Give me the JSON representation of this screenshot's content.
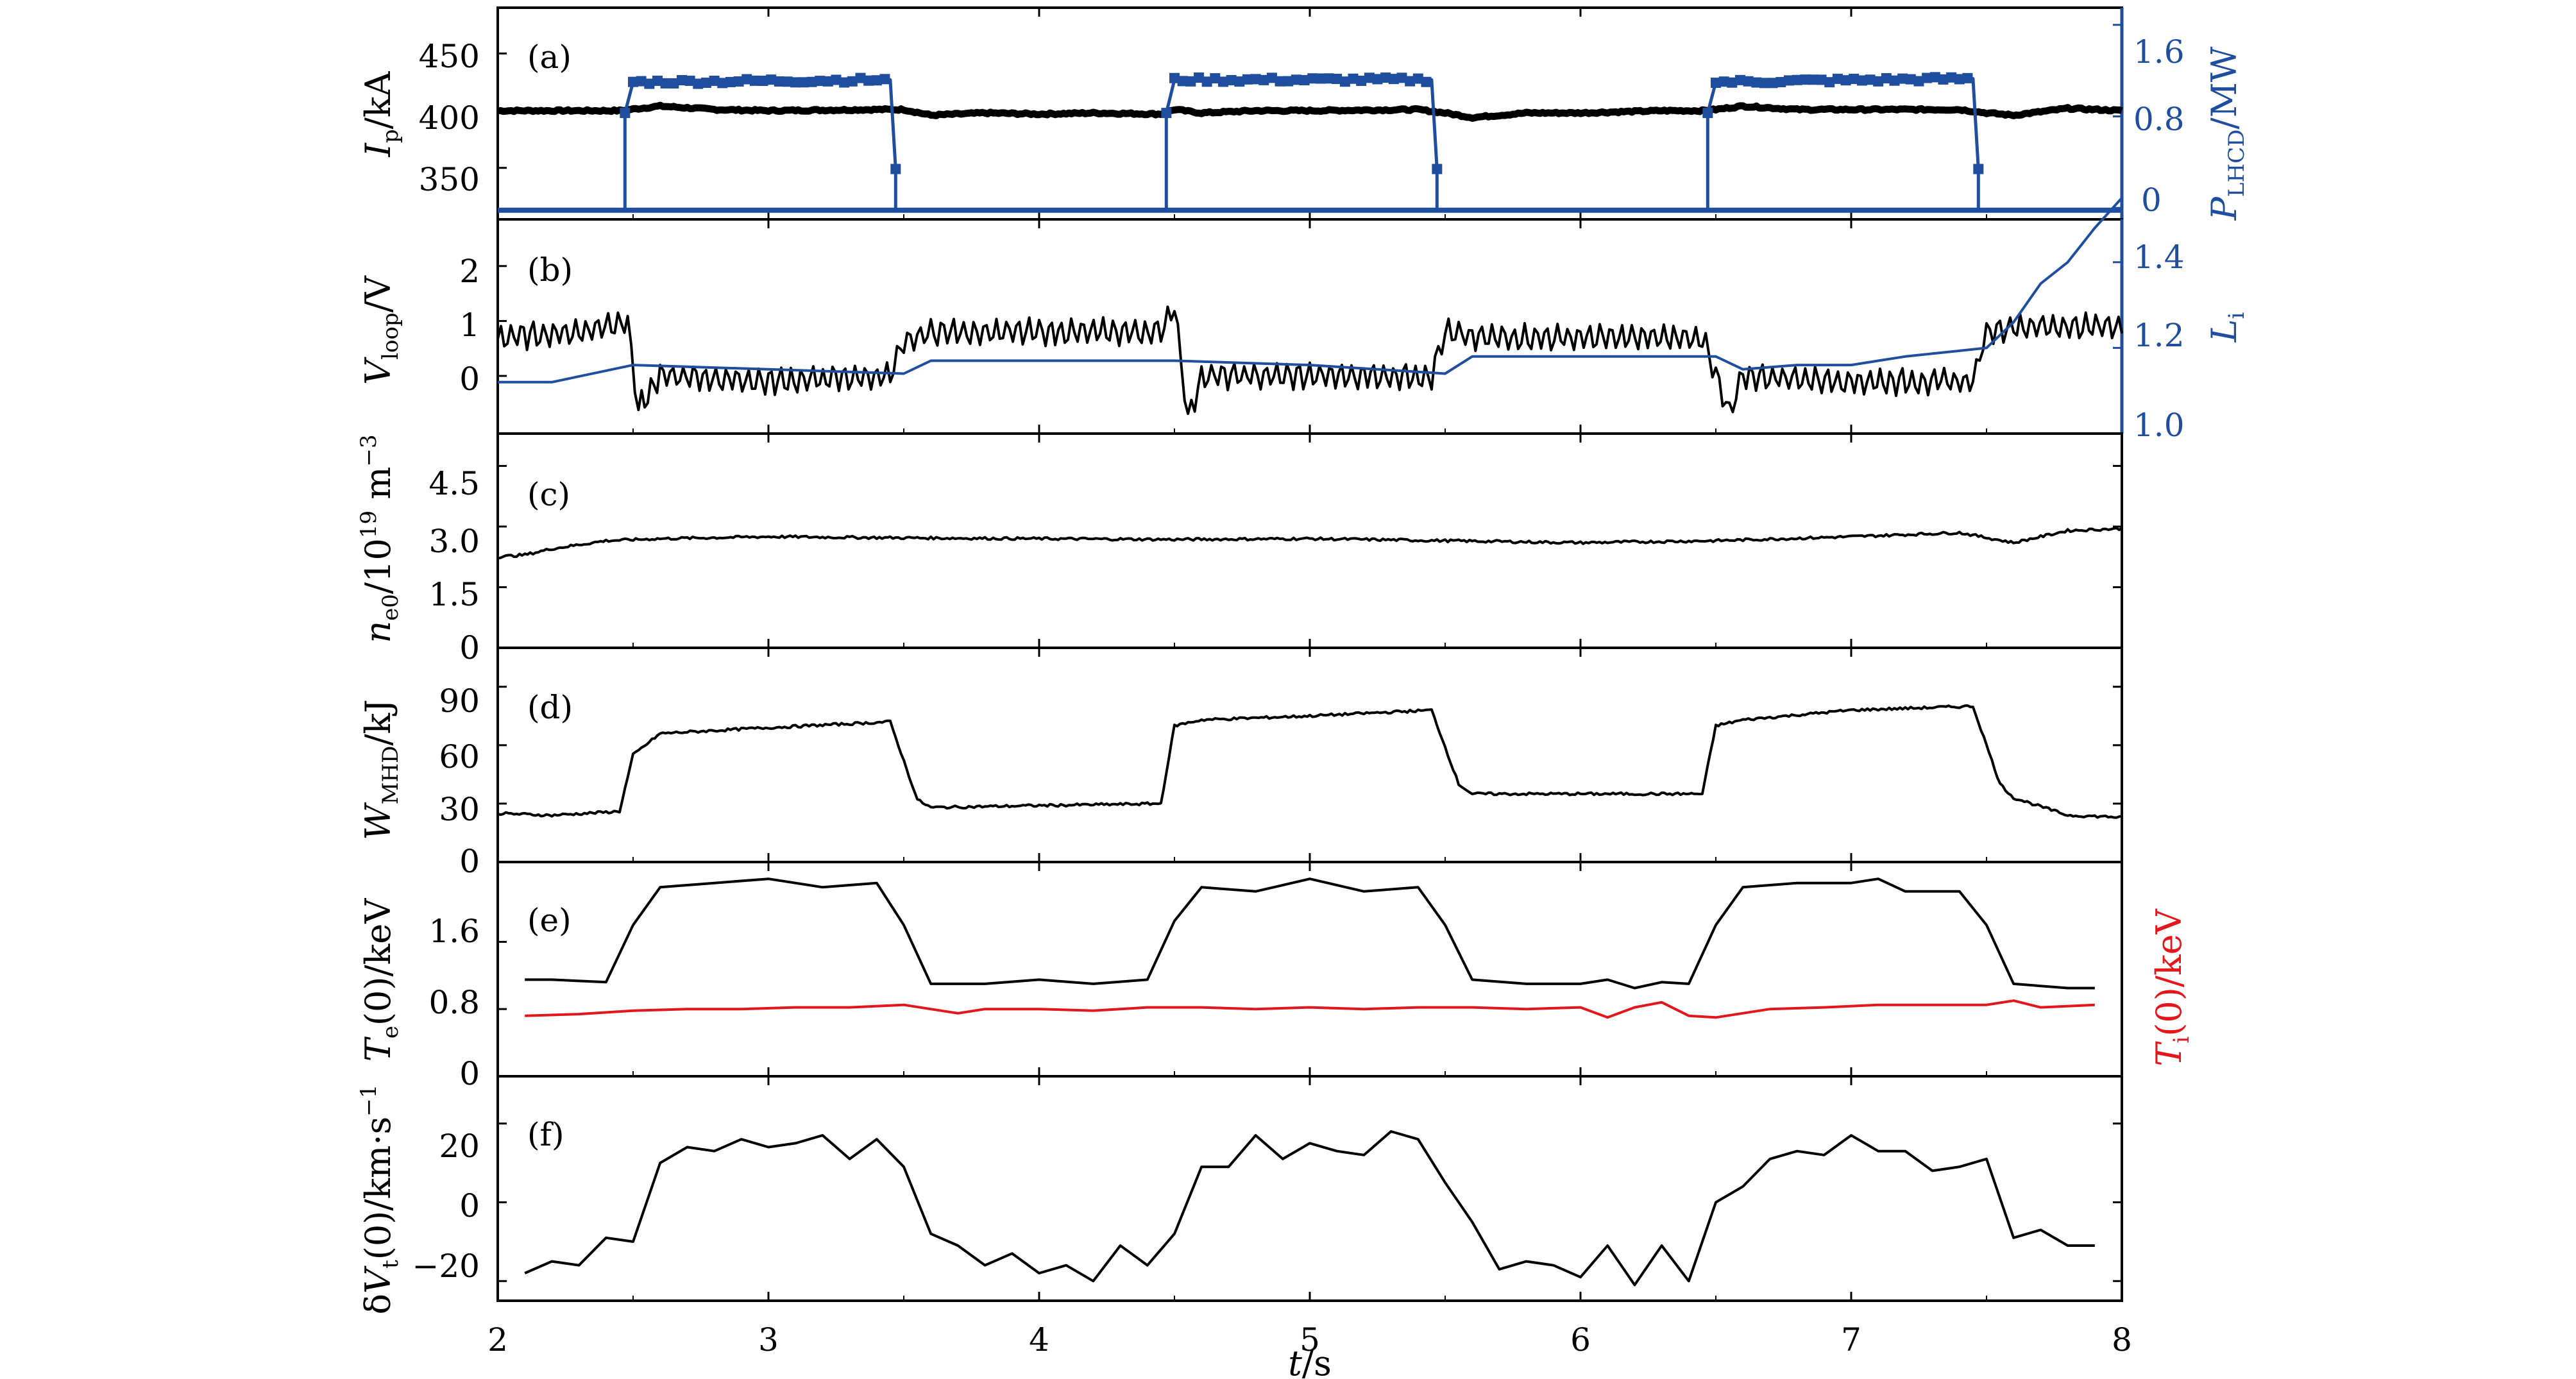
{
  "chart_data": {
    "type": "line",
    "x_axis": {
      "label": "t/s",
      "range": [
        2,
        8
      ],
      "ticks": [
        "2",
        "3",
        "4",
        "5",
        "6",
        "7",
        "8"
      ]
    },
    "colors": {
      "black": "#000000",
      "blue": "#1f4e9f",
      "red": "#e3171b"
    },
    "panels": [
      {
        "tag": "(a)",
        "left_axis": {
          "label": "I_p/kA",
          "range": [
            305,
            490
          ],
          "ticks": [
            "350",
            "400",
            "450"
          ],
          "tick_values": [
            350,
            400,
            450
          ]
        },
        "right_axis": {
          "label": "P_LHCD/MW",
          "range": [
            -0.1,
            1.75
          ],
          "ticks": [
            "0",
            "0.8",
            "1.6"
          ],
          "tick_values": [
            0,
            0.8,
            1.6
          ]
        },
        "series": [
          {
            "axis": "left",
            "color": "black",
            "style": "thick",
            "x": [
              2.0,
              2.3,
              2.45,
              2.6,
              2.8,
              3.0,
              3.4,
              3.5,
              3.6,
              3.8,
              4.0,
              4.2,
              4.45,
              4.5,
              4.6,
              4.8,
              5.0,
              5.4,
              5.5,
              5.6,
              5.8,
              6.0,
              6.3,
              6.45,
              6.5,
              6.6,
              6.8,
              7.0,
              7.4,
              7.5,
              7.6,
              7.8,
              8.0
            ],
            "y": [
              400,
              400,
              400,
              404,
              401,
              400,
              401,
              401,
              396,
              398,
              397,
              398,
              397,
              401,
              398,
              400,
              400,
              401,
              398,
              394,
              398,
              398,
              400,
              400,
              401,
              404,
              401,
              401,
              401,
              398,
              396,
              402,
              400
            ]
          },
          {
            "axis": "right",
            "color": "blue",
            "style": "step-markers",
            "x": [
              2.0,
              2.47,
              2.47,
              2.5,
              3.45,
              3.47,
              3.47,
              4.47,
              4.47,
              4.5,
              5.45,
              5.47,
              5.47,
              6.47,
              6.47,
              6.5,
              7.45,
              7.47,
              7.47,
              8.0
            ],
            "y": [
              -0.02,
              -0.02,
              0.83,
              1.1,
              1.12,
              0.34,
              -0.02,
              -0.02,
              0.83,
              1.12,
              1.12,
              0.34,
              -0.02,
              -0.02,
              0.83,
              1.1,
              1.13,
              0.34,
              -0.02,
              -0.02
            ]
          }
        ]
      },
      {
        "tag": "(b)",
        "left_axis": {
          "label": "V_loop/V",
          "range": [
            -1.05,
            2.85
          ],
          "ticks": [
            "0",
            "1",
            "2"
          ],
          "tick_values": [
            0,
            1,
            2
          ]
        },
        "right_axis": {
          "label": "L_i",
          "range": [
            1.0,
            1.5
          ],
          "ticks": [
            "1.0",
            "1.2",
            "1.4"
          ],
          "tick_values": [
            1.0,
            1.2,
            1.4
          ]
        },
        "series": [
          {
            "axis": "left",
            "color": "black",
            "style": "oscillating",
            "x": [
              2.0,
              2.3,
              2.48,
              2.52,
              2.6,
              3.0,
              3.45,
              3.5,
              3.6,
              4.0,
              4.45,
              4.5,
              4.55,
              4.6,
              5.0,
              5.45,
              5.5,
              5.6,
              6.0,
              6.45,
              6.5,
              6.55,
              6.6,
              7.0,
              7.45,
              7.5,
              7.6,
              8.0
            ],
            "y": [
              0.7,
              0.8,
              1.0,
              -0.6,
              0.0,
              -0.1,
              0.0,
              0.6,
              0.8,
              0.8,
              0.8,
              1.3,
              -0.8,
              0.0,
              0.0,
              0.0,
              0.8,
              0.7,
              0.7,
              0.7,
              0.0,
              -0.7,
              0.0,
              -0.1,
              -0.1,
              0.8,
              0.9,
              0.9
            ]
          },
          {
            "axis": "right",
            "color": "blue",
            "style": "line",
            "x": [
              2.0,
              2.2,
              2.5,
              3.0,
              3.5,
              3.6,
              4.0,
              4.5,
              5.0,
              5.5,
              5.6,
              6.0,
              6.5,
              6.6,
              6.8,
              7.0,
              7.2,
              7.5,
              7.6,
              7.7,
              7.8,
              7.9,
              8.0
            ],
            "y": [
              1.12,
              1.12,
              1.16,
              1.15,
              1.14,
              1.17,
              1.17,
              1.17,
              1.16,
              1.14,
              1.18,
              1.18,
              1.18,
              1.15,
              1.16,
              1.16,
              1.18,
              1.2,
              1.26,
              1.35,
              1.4,
              1.48,
              1.55
            ]
          }
        ]
      },
      {
        "tag": "(c)",
        "left_axis": {
          "label": "n_e0/10^19 m^-3",
          "range": [
            0,
            5.3
          ],
          "ticks": [
            "0",
            "1.5",
            "3.0",
            "4.5"
          ],
          "tick_values": [
            0,
            1.5,
            3.0,
            4.5
          ]
        },
        "series": [
          {
            "axis": "left",
            "color": "black",
            "style": "noisy",
            "x": [
              2.0,
              2.1,
              2.2,
              2.4,
              2.6,
              3.0,
              3.5,
              4.0,
              4.5,
              5.0,
              5.5,
              6.0,
              6.5,
              7.0,
              7.4,
              7.6,
              7.8,
              8.0
            ],
            "y": [
              2.25,
              2.3,
              2.45,
              2.65,
              2.7,
              2.75,
              2.72,
              2.7,
              2.68,
              2.7,
              2.65,
              2.6,
              2.65,
              2.75,
              2.85,
              2.6,
              2.9,
              2.95
            ]
          }
        ]
      },
      {
        "tag": "(d)",
        "left_axis": {
          "label": "W_MHD/kJ",
          "range": [
            0,
            110
          ],
          "ticks": [
            "0",
            "30",
            "60",
            "90"
          ],
          "tick_values": [
            0,
            30,
            60,
            90
          ]
        },
        "series": [
          {
            "axis": "left",
            "color": "black",
            "style": "noisy",
            "x": [
              2.0,
              2.2,
              2.45,
              2.5,
              2.6,
              3.0,
              3.45,
              3.55,
              3.6,
              4.0,
              4.45,
              4.5,
              4.6,
              5.0,
              5.45,
              5.55,
              5.6,
              6.0,
              6.45,
              6.5,
              6.6,
              7.0,
              7.45,
              7.55,
              7.6,
              7.8,
              8.0
            ],
            "y": [
              25,
              24,
              26,
              55,
              66,
              69,
              72,
              32,
              28,
              29,
              30,
              70,
              73,
              75,
              78,
              40,
              35,
              35,
              35,
              70,
              73,
              78,
              80,
              40,
              33,
              24,
              23
            ]
          }
        ]
      },
      {
        "tag": "(e)",
        "left_axis": {
          "label": "T_e(0)/keV",
          "range": [
            0,
            2.55
          ],
          "ticks": [
            "0",
            "0.8",
            "1.6"
          ],
          "tick_values": [
            0,
            0.8,
            1.6
          ]
        },
        "right_axis": {
          "label": "T_i(0)/keV",
          "range": [
            0,
            2.55
          ],
          "ticks": [],
          "tick_values": []
        },
        "series": [
          {
            "axis": "left",
            "color": "black",
            "style": "line",
            "x": [
              2.1,
              2.2,
              2.4,
              2.5,
              2.6,
              2.8,
              3.0,
              3.2,
              3.4,
              3.5,
              3.6,
              3.8,
              4.0,
              4.2,
              4.4,
              4.5,
              4.6,
              4.8,
              5.0,
              5.2,
              5.4,
              5.5,
              5.6,
              5.8,
              6.0,
              6.1,
              6.2,
              6.3,
              6.4,
              6.5,
              6.6,
              6.8,
              7.0,
              7.1,
              7.2,
              7.4,
              7.5,
              7.6,
              7.8,
              7.9
            ],
            "y": [
              1.15,
              1.15,
              1.12,
              1.8,
              2.25,
              2.3,
              2.35,
              2.25,
              2.3,
              1.8,
              1.1,
              1.1,
              1.15,
              1.1,
              1.15,
              1.85,
              2.25,
              2.2,
              2.35,
              2.2,
              2.25,
              1.8,
              1.15,
              1.1,
              1.1,
              1.15,
              1.05,
              1.12,
              1.1,
              1.8,
              2.25,
              2.3,
              2.3,
              2.35,
              2.2,
              2.2,
              1.8,
              1.1,
              1.05,
              1.05
            ]
          },
          {
            "axis": "right",
            "color": "red",
            "style": "line",
            "x": [
              2.1,
              2.3,
              2.5,
              2.7,
              2.9,
              3.1,
              3.3,
              3.5,
              3.7,
              3.8,
              4.0,
              4.2,
              4.4,
              4.6,
              4.8,
              5.0,
              5.2,
              5.4,
              5.6,
              5.8,
              6.0,
              6.1,
              6.2,
              6.3,
              6.4,
              6.5,
              6.7,
              6.9,
              7.1,
              7.3,
              7.5,
              7.6,
              7.7,
              7.9
            ],
            "y": [
              0.72,
              0.74,
              0.78,
              0.8,
              0.8,
              0.82,
              0.82,
              0.85,
              0.75,
              0.8,
              0.8,
              0.78,
              0.82,
              0.82,
              0.8,
              0.82,
              0.8,
              0.82,
              0.82,
              0.8,
              0.82,
              0.7,
              0.82,
              0.88,
              0.72,
              0.7,
              0.8,
              0.82,
              0.85,
              0.85,
              0.85,
              0.9,
              0.82,
              0.85
            ]
          }
        ]
      },
      {
        "tag": "(f)",
        "left_axis": {
          "label": "δV_t(0)/km·s^-1",
          "range": [
            -25,
            32
          ],
          "ticks": [
            "−20",
            "0",
            "20"
          ],
          "tick_values": [
            -20,
            0,
            20
          ]
        },
        "series": [
          {
            "axis": "left",
            "color": "black",
            "style": "line",
            "x": [
              2.1,
              2.2,
              2.3,
              2.4,
              2.5,
              2.6,
              2.7,
              2.8,
              2.9,
              3.0,
              3.1,
              3.2,
              3.3,
              3.4,
              3.5,
              3.6,
              3.7,
              3.8,
              3.9,
              4.0,
              4.1,
              4.2,
              4.3,
              4.4,
              4.5,
              4.6,
              4.7,
              4.8,
              4.9,
              5.0,
              5.1,
              5.2,
              5.3,
              5.4,
              5.5,
              5.6,
              5.7,
              5.8,
              5.9,
              6.0,
              6.1,
              6.2,
              6.3,
              6.4,
              6.5,
              6.6,
              6.7,
              6.8,
              6.9,
              7.0,
              7.1,
              7.2,
              7.3,
              7.4,
              7.5,
              7.6,
              7.7,
              7.8,
              7.9
            ],
            "y": [
              -18,
              -15,
              -16,
              -9,
              -10,
              10,
              14,
              13,
              16,
              14,
              15,
              17,
              11,
              16,
              9,
              -8,
              -11,
              -16,
              -13,
              -18,
              -16,
              -20,
              -11,
              -16,
              -8,
              9,
              9,
              17,
              11,
              15,
              13,
              12,
              18,
              16,
              5,
              -5,
              -17,
              -15,
              -16,
              -19,
              -11,
              -21,
              -11,
              -20,
              0,
              4,
              11,
              13,
              12,
              17,
              13,
              13,
              8,
              9,
              11,
              -9,
              -7,
              -11,
              -11
            ]
          }
        ]
      }
    ]
  }
}
